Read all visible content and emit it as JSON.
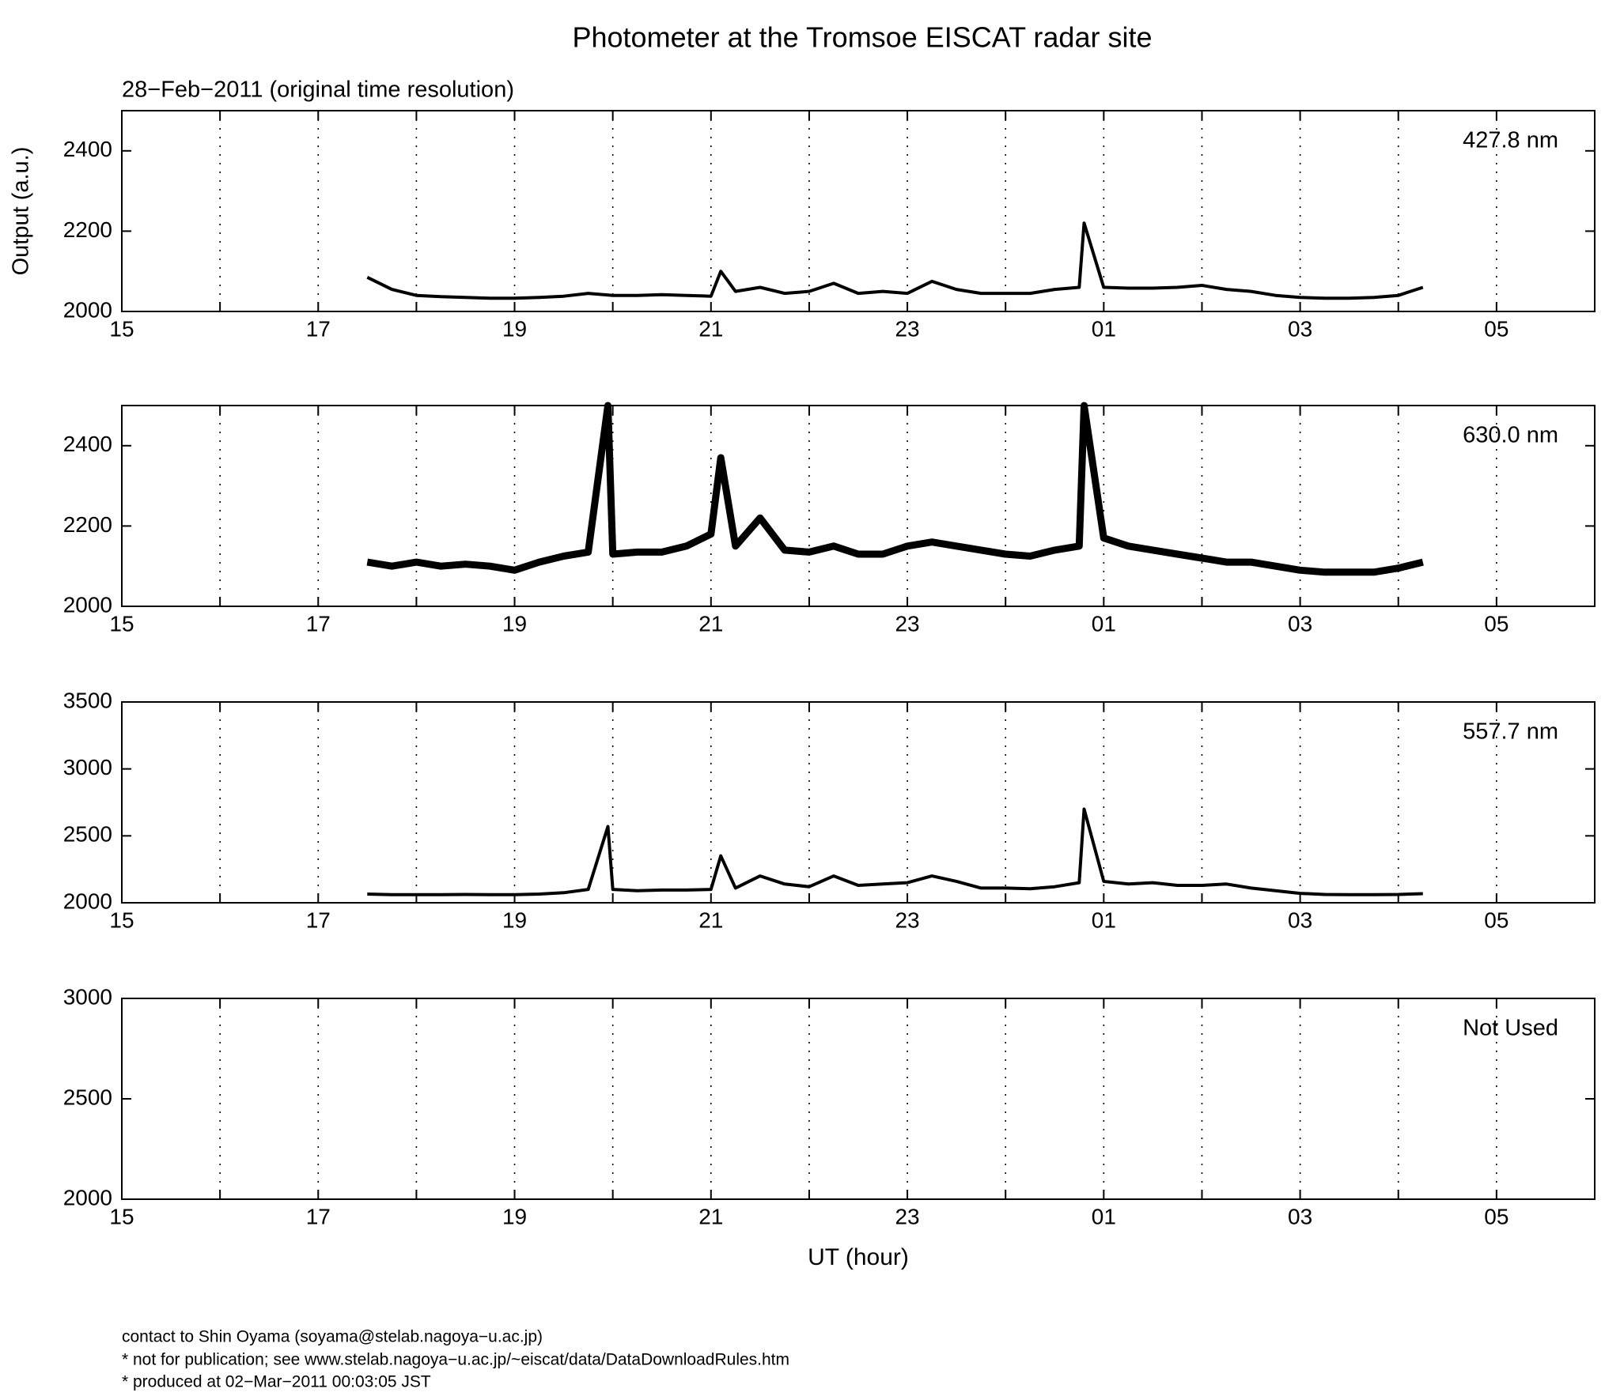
{
  "title": "Photometer at the Tromsoe EISCAT radar site",
  "subtitle": "28−Feb−2011 (original time resolution)",
  "y_label": "Output (a.u.)",
  "x_label": "UT (hour)",
  "footer": [
    "contact to Shin Oyama (soyama@stelab.nagoya−u.ac.jp)",
    "* not for publication; see www.stelab.nagoya−u.ac.jp/~eiscat/data/DataDownloadRules.htm",
    "* produced at 02−Mar−2011 00:03:05 JST"
  ],
  "chart_data": [
    {
      "type": "line",
      "label": "427.8 nm",
      "color": "#000000",
      "grid": true,
      "xlim": [
        15,
        30
      ],
      "ylim": [
        2000,
        2500
      ],
      "yticks": [
        2000,
        2200,
        2400
      ],
      "xticks": [
        15,
        17,
        19,
        21,
        23,
        {
          "value": 25,
          "label": "01"
        },
        {
          "value": 27,
          "label": "03"
        },
        {
          "value": 29,
          "label": "05"
        }
      ],
      "xminor": [
        16,
        18,
        20,
        22,
        24,
        26,
        28
      ],
      "x": [
        17.5,
        17.75,
        18,
        18.25,
        18.5,
        18.75,
        19,
        19.25,
        19.5,
        19.75,
        20,
        20.25,
        20.5,
        20.75,
        21,
        21.1,
        21.25,
        21.5,
        21.75,
        22,
        22.25,
        22.5,
        22.75,
        23,
        23.25,
        23.5,
        23.75,
        24,
        24.25,
        24.5,
        24.75,
        24.8,
        25,
        25.25,
        25.5,
        25.75,
        26,
        26.25,
        26.5,
        26.75,
        27,
        27.25,
        27.5,
        27.75,
        28,
        28.25
      ],
      "values": [
        2085,
        2055,
        2040,
        2037,
        2035,
        2033,
        2033,
        2035,
        2038,
        2045,
        2040,
        2040,
        2042,
        2040,
        2038,
        2100,
        2050,
        2060,
        2045,
        2050,
        2070,
        2045,
        2050,
        2045,
        2075,
        2055,
        2045,
        2045,
        2045,
        2055,
        2060,
        2220,
        2060,
        2058,
        2058,
        2060,
        2065,
        2055,
        2050,
        2040,
        2035,
        2033,
        2033,
        2035,
        2040,
        2060
      ]
    },
    {
      "type": "line",
      "label": "630.0 nm",
      "color": "#000000",
      "grid": true,
      "xlim": [
        15,
        30
      ],
      "ylim": [
        2000,
        2500
      ],
      "yticks": [
        2000,
        2200,
        2400
      ],
      "xticks": [
        15,
        17,
        19,
        21,
        23,
        {
          "value": 25,
          "label": "01"
        },
        {
          "value": 27,
          "label": "03"
        },
        {
          "value": 29,
          "label": "05"
        }
      ],
      "xminor": [
        16,
        18,
        20,
        22,
        24,
        26,
        28
      ],
      "x": [
        17.5,
        17.75,
        18,
        18.25,
        18.5,
        18.75,
        19,
        19.25,
        19.5,
        19.75,
        19.95,
        20,
        20.25,
        20.5,
        20.75,
        21,
        21.1,
        21.25,
        21.5,
        21.75,
        22,
        22.25,
        22.5,
        22.75,
        23,
        23.25,
        23.5,
        23.75,
        24,
        24.25,
        24.5,
        24.75,
        24.8,
        25,
        25.25,
        25.5,
        25.75,
        26,
        26.25,
        26.5,
        26.75,
        27,
        27.25,
        27.5,
        27.75,
        28,
        28.25
      ],
      "values": [
        2110,
        2100,
        2110,
        2100,
        2105,
        2100,
        2090,
        2110,
        2125,
        2135,
        2500,
        2130,
        2135,
        2135,
        2150,
        2180,
        2370,
        2150,
        2220,
        2140,
        2135,
        2150,
        2130,
        2130,
        2150,
        2160,
        2150,
        2140,
        2130,
        2125,
        2140,
        2150,
        2500,
        2170,
        2150,
        2140,
        2130,
        2120,
        2110,
        2110,
        2100,
        2090,
        2085,
        2085,
        2085,
        2095,
        2110
      ]
    },
    {
      "type": "line",
      "label": "557.7 nm",
      "color": "#000000",
      "grid": true,
      "xlim": [
        15,
        30
      ],
      "ylim": [
        2000,
        3500
      ],
      "yticks": [
        2000,
        2500,
        3000,
        3500
      ],
      "xticks": [
        15,
        17,
        19,
        21,
        23,
        {
          "value": 25,
          "label": "01"
        },
        {
          "value": 27,
          "label": "03"
        },
        {
          "value": 29,
          "label": "05"
        }
      ],
      "xminor": [
        16,
        18,
        20,
        22,
        24,
        26,
        28
      ],
      "x": [
        17.5,
        17.75,
        18,
        18.25,
        18.5,
        18.75,
        19,
        19.25,
        19.5,
        19.75,
        19.95,
        20,
        20.25,
        20.5,
        20.75,
        21,
        21.1,
        21.25,
        21.5,
        21.75,
        22,
        22.25,
        22.5,
        22.75,
        23,
        23.25,
        23.5,
        23.75,
        24,
        24.25,
        24.5,
        24.75,
        24.8,
        25,
        25.25,
        25.5,
        25.75,
        26,
        26.25,
        26.5,
        26.75,
        27,
        27.25,
        27.5,
        27.75,
        28,
        28.25
      ],
      "values": [
        2065,
        2060,
        2060,
        2060,
        2062,
        2060,
        2060,
        2065,
        2075,
        2100,
        2570,
        2100,
        2090,
        2095,
        2095,
        2100,
        2350,
        2110,
        2200,
        2140,
        2120,
        2200,
        2130,
        2140,
        2150,
        2200,
        2160,
        2110,
        2110,
        2105,
        2120,
        2150,
        2700,
        2160,
        2140,
        2150,
        2130,
        2130,
        2140,
        2110,
        2090,
        2070,
        2062,
        2060,
        2060,
        2062,
        2068
      ]
    },
    {
      "type": "line",
      "label": "Not Used",
      "color": "#000000",
      "grid": true,
      "xlim": [
        15,
        30
      ],
      "ylim": [
        2000,
        3000
      ],
      "yticks": [
        2000,
        2500,
        3000
      ],
      "xticks": [
        15,
        17,
        19,
        21,
        23,
        {
          "value": 25,
          "label": "01"
        },
        {
          "value": 27,
          "label": "03"
        },
        {
          "value": 29,
          "label": "05"
        }
      ],
      "xminor": [
        16,
        18,
        20,
        22,
        24,
        26,
        28
      ],
      "x": [],
      "values": []
    }
  ]
}
